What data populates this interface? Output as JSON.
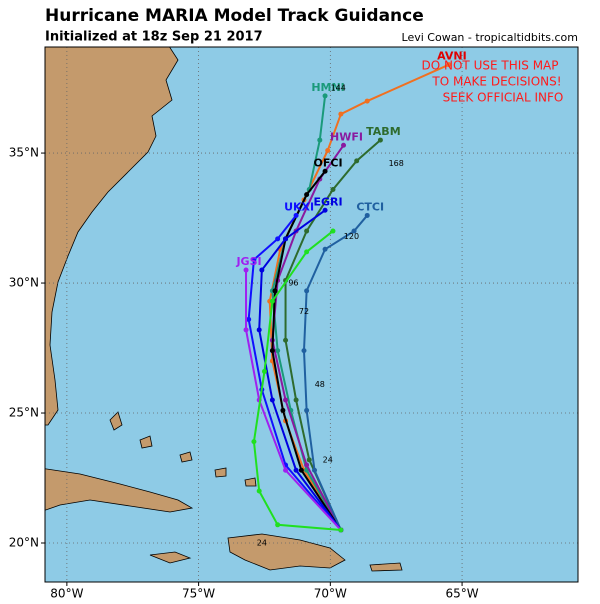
{
  "header": {
    "title": "Hurricane MARIA Model Track Guidance",
    "subtitle": "Initialized at 18z Sep 21 2017",
    "credit": "Levi Cowan - tropicaltidbits.com"
  },
  "warning": [
    "DO NOT USE THIS MAP",
    "TO MAKE DECISIONS!",
    "SEEK OFFICIAL INFO"
  ],
  "map": {
    "xlim": [
      -80.83,
      -60.6
    ],
    "ylim": [
      18.5,
      39.08
    ],
    "xticks": [
      {
        "value": -80,
        "label": "80°W"
      },
      {
        "value": -75,
        "label": "75°W"
      },
      {
        "value": -70,
        "label": "70°W"
      },
      {
        "value": -65,
        "label": "65°W"
      }
    ],
    "yticks": [
      {
        "value": 20,
        "label": "20°N"
      },
      {
        "value": 25,
        "label": "25°N"
      },
      {
        "value": 30,
        "label": "30°N"
      },
      {
        "value": 35,
        "label": "35°N"
      }
    ],
    "grid": true,
    "tracks": [
      {
        "name": "AVNI",
        "color": "#f07020",
        "label_color": "#e00000",
        "lon": [
          -69.6,
          -71.0,
          -71.7,
          -72.2,
          -72.3,
          -71.9,
          -71.0,
          -70.1,
          -69.6,
          -68.6,
          -65.5
        ],
        "lat": [
          20.5,
          22.8,
          24.7,
          27.0,
          29.3,
          31.3,
          33.2,
          35.1,
          36.5,
          37.0,
          38.4
        ]
      },
      {
        "name": "HMNI",
        "color": "#1a9a7a",
        "label_color": "#1a9a7a",
        "lon": [
          -69.6,
          -70.9,
          -71.5,
          -72.0,
          -72.2,
          -71.7,
          -70.8,
          -70.4,
          -70.2
        ],
        "lat": [
          20.5,
          22.8,
          25.1,
          27.4,
          29.7,
          31.7,
          33.6,
          35.5,
          37.2
        ]
      },
      {
        "name": "TABM",
        "color": "#2e6b2e",
        "label_color": "#2e6b2e",
        "lon": [
          -69.6,
          -70.8,
          -71.3,
          -71.7,
          -71.7,
          -70.9,
          -69.9,
          -69.0,
          -68.1
        ],
        "lat": [
          20.5,
          23.2,
          25.5,
          27.8,
          30.1,
          32.0,
          33.6,
          34.7,
          35.5
        ]
      },
      {
        "name": "HWFI",
        "color": "#8a1aa0",
        "label_color": "#8a1aa0",
        "lon": [
          -69.6,
          -70.9,
          -71.7,
          -72.2,
          -72.0,
          -71.3,
          -70.4,
          -69.5
        ],
        "lat": [
          20.5,
          23.0,
          25.5,
          27.8,
          30.1,
          32.0,
          34.0,
          35.3
        ]
      },
      {
        "name": "OFCI",
        "color": "#000000",
        "label_color": "#000000",
        "lon": [
          -69.6,
          -71.1,
          -71.8,
          -72.2,
          -72.1,
          -71.7,
          -70.9,
          -70.2
        ],
        "lat": [
          20.5,
          22.8,
          25.1,
          27.4,
          29.7,
          31.7,
          33.4,
          34.3
        ]
      },
      {
        "name": "CTCI",
        "color": "#2060a0",
        "label_color": "#2060a0",
        "lon": [
          -69.6,
          -70.6,
          -70.9,
          -71.0,
          -70.9,
          -70.2,
          -69.1,
          -68.6
        ],
        "lat": [
          20.5,
          22.8,
          25.1,
          27.4,
          29.7,
          31.3,
          32.0,
          32.6
        ]
      },
      {
        "name": "EGRI",
        "color": "#0000e0",
        "label_color": "#0000e0",
        "lon": [
          -69.6,
          -71.3,
          -72.2,
          -72.7,
          -72.6,
          -71.7,
          -70.2
        ],
        "lat": [
          20.5,
          22.8,
          25.5,
          28.2,
          30.5,
          31.7,
          32.8
        ]
      },
      {
        "name": "UKXI",
        "color": "#1010ff",
        "label_color": "#1010ff",
        "lon": [
          -69.6,
          -71.7,
          -72.6,
          -73.1,
          -72.9,
          -72.0,
          -71.3
        ],
        "lat": [
          20.5,
          23.0,
          25.9,
          28.6,
          30.9,
          31.7,
          32.6
        ]
      },
      {
        "name": "JGSI",
        "color": "#a020f0",
        "label_color": "#a020f0",
        "lon": [
          -69.6,
          -71.7,
          -72.7,
          -73.2,
          -73.2
        ],
        "lat": [
          20.5,
          22.8,
          25.5,
          28.2,
          30.5
        ]
      },
      {
        "color": "#20e020",
        "lon": [
          -69.6,
          -72.0,
          -72.7,
          -72.9,
          -72.5,
          -72.2,
          -70.9,
          -69.9
        ],
        "lat": [
          20.5,
          20.7,
          22.0,
          23.9,
          26.6,
          29.3,
          31.2,
          32.0
        ]
      }
    ],
    "hour_labels": [
      {
        "hour": 24,
        "lon": -72.6,
        "lat": 20.0
      },
      {
        "hour": 24,
        "lon": -70.1,
        "lat": 23.2
      },
      {
        "hour": 48,
        "lon": -70.4,
        "lat": 26.1
      },
      {
        "hour": 72,
        "lon": -71.0,
        "lat": 28.9
      },
      {
        "hour": 96,
        "lon": -71.4,
        "lat": 30.0
      },
      {
        "hour": 120,
        "lon": -69.2,
        "lat": 31.8
      },
      {
        "hour": 144,
        "lon": -69.7,
        "lat": 37.5
      },
      {
        "hour": 168,
        "lon": -67.5,
        "lat": 34.6
      }
    ]
  }
}
